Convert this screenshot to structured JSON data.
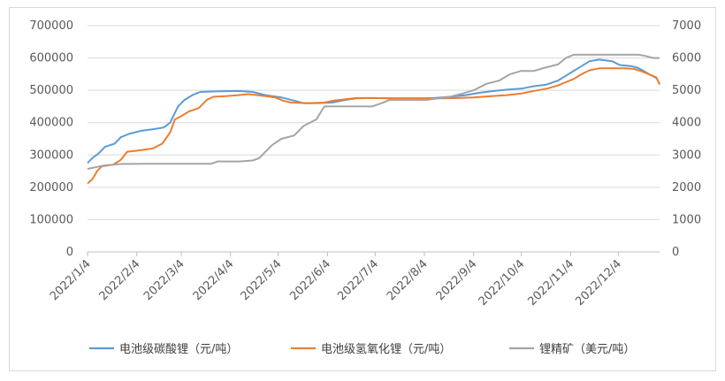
{
  "chart_data": {
    "type": "line",
    "title": "",
    "xlabel": "",
    "ylabel": "",
    "x_ticks": [
      "2022/1/4",
      "2022/2/4",
      "2022/3/4",
      "2022/4/4",
      "2022/5/4",
      "2022/6/4",
      "2022/7/4",
      "2022/8/4",
      "2022/9/4",
      "2022/10/4",
      "2022/11/4",
      "2022/12/4"
    ],
    "x_range": [
      "2022-01-04",
      "2022-12-30"
    ],
    "y_left": {
      "min": 0,
      "max": 700000,
      "step": 100000,
      "ticks": [
        "0",
        "100000",
        "200000",
        "300000",
        "400000",
        "500000",
        "600000",
        "700000"
      ]
    },
    "y_right": {
      "min": 0,
      "max": 7000,
      "step": 1000,
      "ticks": [
        "0",
        "1000",
        "2000",
        "3000",
        "4000",
        "5000",
        "6000",
        "7000"
      ]
    },
    "grid": "horizontal",
    "legend_position": "bottom",
    "series": [
      {
        "name": "电池级碳酸锂（元/吨）",
        "axis": "left",
        "color": "#5b9bd5",
        "points": [
          [
            "2022-01-04",
            275000
          ],
          [
            "2022-01-07",
            290000
          ],
          [
            "2022-01-11",
            305000
          ],
          [
            "2022-01-15",
            325000
          ],
          [
            "2022-01-21",
            335000
          ],
          [
            "2022-01-25",
            355000
          ],
          [
            "2022-01-30",
            365000
          ],
          [
            "2022-02-07",
            375000
          ],
          [
            "2022-02-15",
            380000
          ],
          [
            "2022-02-21",
            385000
          ],
          [
            "2022-02-25",
            400000
          ],
          [
            "2022-02-28",
            430000
          ],
          [
            "2022-03-02",
            450000
          ],
          [
            "2022-03-06",
            470000
          ],
          [
            "2022-03-11",
            485000
          ],
          [
            "2022-03-16",
            495000
          ],
          [
            "2022-03-28",
            497000
          ],
          [
            "2022-04-09",
            498000
          ],
          [
            "2022-04-18",
            495000
          ],
          [
            "2022-04-26",
            485000
          ],
          [
            "2022-05-06",
            478000
          ],
          [
            "2022-05-14",
            468000
          ],
          [
            "2022-05-20",
            460000
          ],
          [
            "2022-05-28",
            460000
          ],
          [
            "2022-06-07",
            462000
          ],
          [
            "2022-06-15",
            470000
          ],
          [
            "2022-06-22",
            475000
          ],
          [
            "2022-07-02",
            476000
          ],
          [
            "2022-07-15",
            475000
          ],
          [
            "2022-08-01",
            475000
          ],
          [
            "2022-08-10",
            476000
          ],
          [
            "2022-08-20",
            480000
          ],
          [
            "2022-08-30",
            485000
          ],
          [
            "2022-09-07",
            492000
          ],
          [
            "2022-09-15",
            497000
          ],
          [
            "2022-09-25",
            502000
          ],
          [
            "2022-10-04",
            505000
          ],
          [
            "2022-10-11",
            512000
          ],
          [
            "2022-10-20",
            518000
          ],
          [
            "2022-10-27",
            530000
          ],
          [
            "2022-11-01",
            545000
          ],
          [
            "2022-11-06",
            560000
          ],
          [
            "2022-11-11",
            575000
          ],
          [
            "2022-11-16",
            590000
          ],
          [
            "2022-11-22",
            595000
          ],
          [
            "2022-11-30",
            590000
          ],
          [
            "2022-12-05",
            578000
          ],
          [
            "2022-12-12",
            575000
          ],
          [
            "2022-12-16",
            570000
          ],
          [
            "2022-12-20",
            560000
          ],
          [
            "2022-12-24",
            548000
          ],
          [
            "2022-12-28",
            538000
          ],
          [
            "2022-12-30",
            520000
          ]
        ]
      },
      {
        "name": "电池级氢氧化锂（元/吨）",
        "axis": "left",
        "color": "#ed7d31",
        "points": [
          [
            "2022-01-04",
            212000
          ],
          [
            "2022-01-07",
            225000
          ],
          [
            "2022-01-10",
            250000
          ],
          [
            "2022-01-13",
            265000
          ],
          [
            "2022-01-20",
            270000
          ],
          [
            "2022-01-25",
            285000
          ],
          [
            "2022-01-29",
            310000
          ],
          [
            "2022-02-04",
            313000
          ],
          [
            "2022-02-14",
            320000
          ],
          [
            "2022-02-20",
            335000
          ],
          [
            "2022-02-25",
            370000
          ],
          [
            "2022-02-28",
            410000
          ],
          [
            "2022-03-04",
            420000
          ],
          [
            "2022-03-09",
            435000
          ],
          [
            "2022-03-15",
            445000
          ],
          [
            "2022-03-20",
            470000
          ],
          [
            "2022-03-24",
            480000
          ],
          [
            "2022-04-01",
            482000
          ],
          [
            "2022-04-09",
            485000
          ],
          [
            "2022-04-15",
            488000
          ],
          [
            "2022-04-21",
            485000
          ],
          [
            "2022-04-26",
            482000
          ],
          [
            "2022-05-02",
            478000
          ],
          [
            "2022-05-07",
            468000
          ],
          [
            "2022-05-12",
            462000
          ],
          [
            "2022-05-22",
            460000
          ],
          [
            "2022-06-02",
            462000
          ],
          [
            "2022-06-08",
            468000
          ],
          [
            "2022-06-15",
            472000
          ],
          [
            "2022-06-22",
            476000
          ],
          [
            "2022-07-02",
            476000
          ],
          [
            "2022-07-15",
            475000
          ],
          [
            "2022-08-01",
            475000
          ],
          [
            "2022-08-15",
            475000
          ],
          [
            "2022-08-25",
            476000
          ],
          [
            "2022-09-04",
            478000
          ],
          [
            "2022-09-15",
            482000
          ],
          [
            "2022-09-25",
            485000
          ],
          [
            "2022-10-04",
            490000
          ],
          [
            "2022-10-11",
            497000
          ],
          [
            "2022-10-20",
            505000
          ],
          [
            "2022-10-27",
            515000
          ],
          [
            "2022-11-01",
            525000
          ],
          [
            "2022-11-06",
            535000
          ],
          [
            "2022-11-11",
            550000
          ],
          [
            "2022-11-16",
            562000
          ],
          [
            "2022-11-22",
            568000
          ],
          [
            "2022-11-30",
            568000
          ],
          [
            "2022-12-08",
            568000
          ],
          [
            "2022-12-14",
            566000
          ],
          [
            "2022-12-19",
            558000
          ],
          [
            "2022-12-24",
            548000
          ],
          [
            "2022-12-28",
            540000
          ],
          [
            "2022-12-30",
            518000
          ]
        ]
      },
      {
        "name": "锂精矿（美元/吨）",
        "axis": "right",
        "color": "#a5a5a5",
        "points": [
          [
            "2022-01-04",
            2570
          ],
          [
            "2022-01-09",
            2620
          ],
          [
            "2022-01-15",
            2680
          ],
          [
            "2022-01-25",
            2720
          ],
          [
            "2022-02-10",
            2730
          ],
          [
            "2022-02-25",
            2730
          ],
          [
            "2022-03-15",
            2730
          ],
          [
            "2022-03-23",
            2730
          ],
          [
            "2022-03-27",
            2800
          ],
          [
            "2022-04-10",
            2800
          ],
          [
            "2022-04-18",
            2830
          ],
          [
            "2022-04-22",
            2900
          ],
          [
            "2022-04-26",
            3100
          ],
          [
            "2022-04-30",
            3300
          ],
          [
            "2022-05-06",
            3500
          ],
          [
            "2022-05-14",
            3600
          ],
          [
            "2022-05-20",
            3900
          ],
          [
            "2022-05-28",
            4100
          ],
          [
            "2022-06-02",
            4500
          ],
          [
            "2022-06-15",
            4500
          ],
          [
            "2022-07-02",
            4500
          ],
          [
            "2022-07-08",
            4600
          ],
          [
            "2022-07-13",
            4700
          ],
          [
            "2022-07-25",
            4700
          ],
          [
            "2022-08-05",
            4700
          ],
          [
            "2022-08-20",
            4800
          ],
          [
            "2022-08-28",
            4900
          ],
          [
            "2022-09-04",
            5000
          ],
          [
            "2022-09-12",
            5200
          ],
          [
            "2022-09-20",
            5300
          ],
          [
            "2022-09-27",
            5500
          ],
          [
            "2022-10-04",
            5600
          ],
          [
            "2022-10-12",
            5600
          ],
          [
            "2022-10-19",
            5700
          ],
          [
            "2022-10-27",
            5800
          ],
          [
            "2022-11-01",
            6000
          ],
          [
            "2022-11-06",
            6100
          ],
          [
            "2022-11-16",
            6100
          ],
          [
            "2022-12-02",
            6100
          ],
          [
            "2022-12-17",
            6100
          ],
          [
            "2022-12-22",
            6050
          ],
          [
            "2022-12-26",
            6000
          ],
          [
            "2022-12-30",
            6000
          ]
        ]
      }
    ]
  }
}
